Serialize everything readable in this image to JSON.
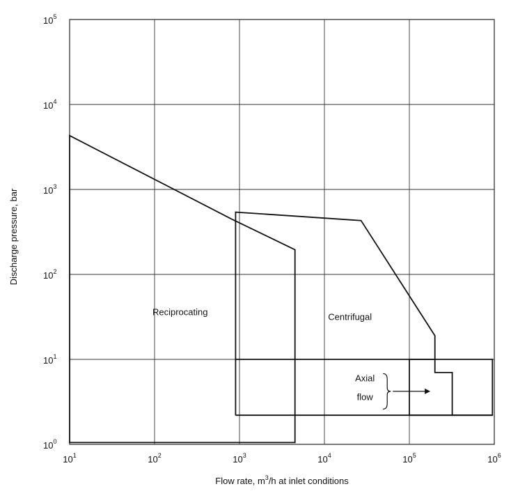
{
  "chart_data": {
    "type": "line",
    "title": "",
    "xlabel": "Flow rate, m³/h at inlet conditions",
    "ylabel": "Discharge pressure,  bar",
    "x_scale": "log",
    "y_scale": "log",
    "xlim": [
      10,
      1000000
    ],
    "ylim": [
      1,
      100000
    ],
    "grid": true,
    "x_ticks": [
      {
        "base": "10",
        "exp": "1"
      },
      {
        "base": "10",
        "exp": "2"
      },
      {
        "base": "10",
        "exp": "3"
      },
      {
        "base": "10",
        "exp": "4"
      },
      {
        "base": "10",
        "exp": "5"
      },
      {
        "base": "10",
        "exp": "6"
      }
    ],
    "y_ticks": [
      {
        "base": "10",
        "exp": "0"
      },
      {
        "base": "10",
        "exp": "1"
      },
      {
        "base": "10",
        "exp": "2"
      },
      {
        "base": "10",
        "exp": "3"
      },
      {
        "base": "10",
        "exp": "4"
      },
      {
        "base": "10",
        "exp": "5"
      }
    ],
    "regions": [
      {
        "label": "Reciprocating",
        "points": [
          [
            10,
            4300
          ],
          [
            800,
            450
          ],
          [
            4500,
            195
          ],
          [
            4500,
            1.05
          ],
          [
            10,
            1.05
          ]
        ]
      },
      {
        "label": "Centrifugal",
        "points": [
          [
            900,
            2.2
          ],
          [
            900,
            540
          ],
          [
            27000,
            430
          ],
          [
            200000,
            19
          ],
          [
            200000,
            10
          ],
          [
            900,
            10
          ]
        ]
      },
      {
        "label": "Axial flow",
        "points": [
          [
            100000,
            2.2
          ],
          [
            100000,
            10
          ],
          [
            950000,
            10
          ],
          [
            950000,
            2.2
          ]
        ],
        "step_boundary": [
          [
            200000,
            10
          ],
          [
            200000,
            7
          ],
          [
            320000,
            7
          ],
          [
            320000,
            2.2
          ]
        ]
      }
    ],
    "centrifugal_bottom": [
      [
        900,
        2.2
      ],
      [
        950000,
        2.2
      ]
    ],
    "label_positions": [
      {
        "text": "Reciprocating",
        "x": 200,
        "y": 33
      },
      {
        "text": "Centrifugal",
        "x": 20000,
        "y": 29
      },
      {
        "text": "Axial",
        "x": 30000,
        "y": 5.5
      },
      {
        "text": "flow",
        "x": 30000,
        "y": 3.3
      }
    ]
  }
}
